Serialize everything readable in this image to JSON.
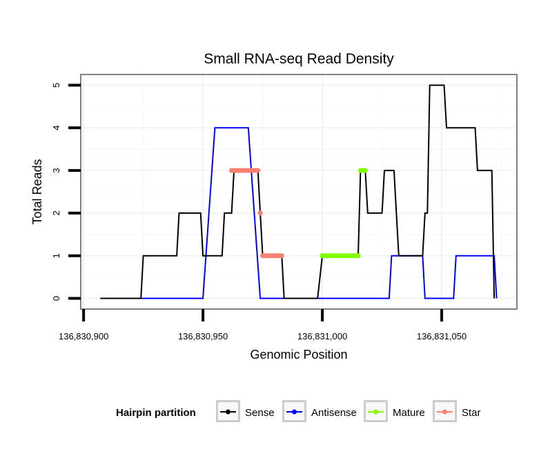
{
  "chart_data": {
    "type": "line",
    "title": "Small RNA-seq Read Density",
    "xlabel": "Genomic Position",
    "ylabel": "Total Reads",
    "x_offset": 136830000,
    "xlim": [
      136830898.8,
      136831081.5
    ],
    "ylim": [
      -0.25,
      5.25
    ],
    "x_ticks": [
      136830900,
      136830950,
      136831000,
      136831050
    ],
    "x_tick_labels": [
      "136,830,900",
      "136,830,950",
      "136,831,000",
      "136,831,050"
    ],
    "x_minor_grid": [
      136830925,
      136830975,
      136831025,
      136831075
    ],
    "y_ticks": [
      0,
      1,
      2,
      3,
      4,
      5
    ],
    "y_tick_labels": [
      "0",
      "1",
      "2",
      "3",
      "4",
      "5"
    ],
    "y_minor_grid": [
      0.5,
      1.5,
      2.5,
      3.5,
      4.5
    ],
    "grid": true,
    "legend": {
      "title": "Hairpin partition",
      "position": "bottom",
      "entries": [
        "Sense",
        "Antisense",
        "Mature",
        "Star"
      ]
    },
    "series": [
      {
        "name": "Sense",
        "color": "#000000",
        "style": "line",
        "x": [
          136830907,
          136830924,
          136830925,
          136830939,
          136830940,
          136830949,
          136830950,
          136830958,
          136830959,
          136830962,
          136830963,
          136830973,
          136830974,
          136830975,
          136830983,
          136830984,
          136830998,
          136831000,
          136831015,
          136831016,
          136831018,
          136831019,
          136831025,
          136831026,
          136831030,
          136831032,
          136831042,
          136831043,
          136831044,
          136831045,
          136831051,
          136831052,
          136831064,
          136831065,
          136831071,
          136831072
        ],
        "y": [
          0,
          0,
          1,
          1,
          2,
          2,
          1,
          1,
          2,
          2,
          3,
          3,
          2,
          1,
          1,
          0,
          0,
          1,
          1,
          3,
          3,
          2,
          2,
          3,
          3,
          1,
          1,
          2,
          2,
          5,
          5,
          4,
          4,
          3,
          3,
          0
        ]
      },
      {
        "name": "Antisense",
        "color": "#0000FF",
        "style": "line",
        "x": [
          136830907,
          136830950,
          136830955,
          136830969,
          136830974,
          136831028,
          136831029,
          136831042,
          136831043,
          136831055,
          136831056,
          136831072,
          136831073
        ],
        "y": [
          0,
          0,
          4,
          4,
          0,
          0,
          1,
          1,
          0,
          0,
          1,
          1,
          0
        ]
      },
      {
        "name": "Mature",
        "color": "#7FFF00",
        "style": "points",
        "x": [
          136831000,
          136831001,
          136831002,
          136831003,
          136831004,
          136831005,
          136831006,
          136831007,
          136831008,
          136831009,
          136831010,
          136831011,
          136831012,
          136831013,
          136831014,
          136831015,
          136831016,
          136831017,
          136831018
        ],
        "y": [
          1,
          1,
          1,
          1,
          1,
          1,
          1,
          1,
          1,
          1,
          1,
          1,
          1,
          1,
          1,
          1,
          3,
          3,
          3
        ]
      },
      {
        "name": "Star",
        "color": "#FA8072",
        "style": "points",
        "x": [
          136830962,
          136830963,
          136830964,
          136830965,
          136830966,
          136830967,
          136830968,
          136830969,
          136830970,
          136830971,
          136830972,
          136830973,
          136830974,
          136830975,
          136830976,
          136830977,
          136830978,
          136830979,
          136830980,
          136830981,
          136830982,
          136830983
        ],
        "y": [
          3,
          3,
          3,
          3,
          3,
          3,
          3,
          3,
          3,
          3,
          3,
          3,
          2,
          1,
          1,
          1,
          1,
          1,
          1,
          1,
          1,
          1
        ]
      }
    ]
  }
}
